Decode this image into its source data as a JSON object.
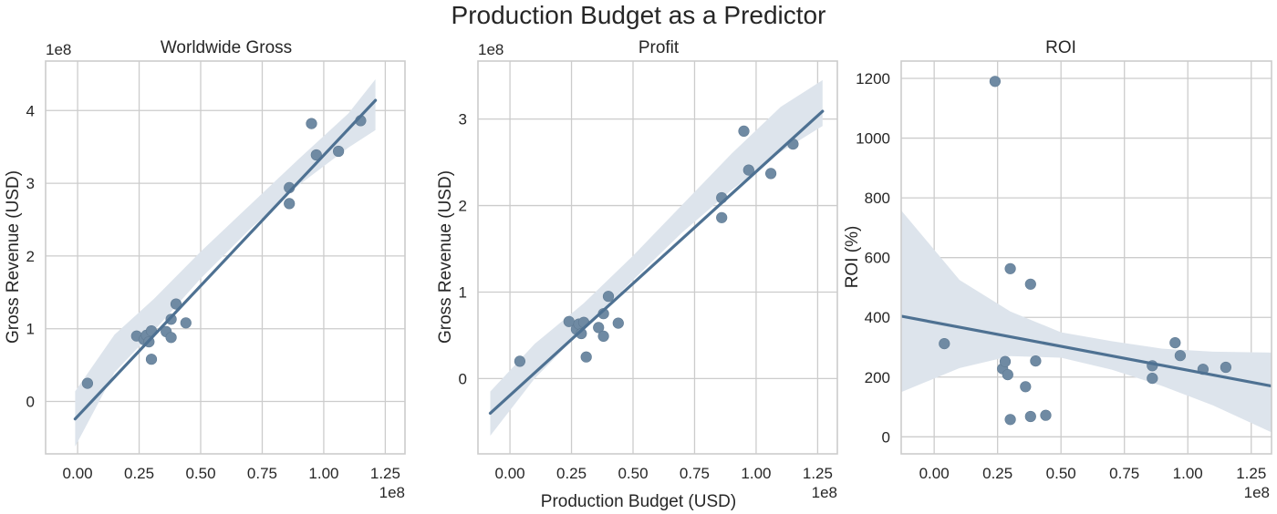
{
  "figure": {
    "title": "Production Budget as a Predictor"
  },
  "colors": {
    "points": "#6f8aa3",
    "line": "#4e7192",
    "band": "#dde4ec",
    "grid": "#cccccc"
  },
  "chart_data": [
    {
      "type": "scatter",
      "title": "Worldwide Gross",
      "xlabel": "",
      "ylabel": "Gross Revenue (USD)",
      "x_offset_label": "1e8",
      "y_offset_label": "1e8",
      "xlim": [
        -0.13,
        1.33
      ],
      "ylim": [
        -0.72,
        4.68
      ],
      "xticks": [
        0.0,
        0.25,
        0.5,
        0.75,
        1.0,
        1.25
      ],
      "xtick_labels": [
        "0.00",
        "0.25",
        "0.50",
        "0.75",
        "1.00",
        "1.25"
      ],
      "yticks": [
        0,
        1,
        2,
        3,
        4
      ],
      "ytick_labels": [
        "0",
        "1",
        "2",
        "3",
        "4"
      ],
      "grid": true,
      "points": [
        {
          "x": 0.04,
          "y": 0.25
        },
        {
          "x": 0.24,
          "y": 0.9
        },
        {
          "x": 0.27,
          "y": 0.85
        },
        {
          "x": 0.28,
          "y": 0.91
        },
        {
          "x": 0.29,
          "y": 0.82
        },
        {
          "x": 0.3,
          "y": 0.97
        },
        {
          "x": 0.3,
          "y": 0.58
        },
        {
          "x": 0.36,
          "y": 0.96
        },
        {
          "x": 0.38,
          "y": 0.88
        },
        {
          "x": 0.38,
          "y": 1.13
        },
        {
          "x": 0.4,
          "y": 1.34
        },
        {
          "x": 0.44,
          "y": 1.08
        },
        {
          "x": 0.86,
          "y": 2.94
        },
        {
          "x": 0.86,
          "y": 2.72
        },
        {
          "x": 0.95,
          "y": 3.82
        },
        {
          "x": 0.97,
          "y": 3.39
        },
        {
          "x": 1.06,
          "y": 3.44
        },
        {
          "x": 1.15,
          "y": 3.86
        }
      ],
      "regression": {
        "x0": -0.01,
        "y0": -0.24,
        "x1": 1.21,
        "y1": 4.14
      },
      "ci_band": {
        "x": [
          -0.01,
          0.15,
          0.31,
          0.5,
          0.7,
          0.9,
          1.1,
          1.21
        ],
        "lower": [
          -0.62,
          0.4,
          0.97,
          1.69,
          2.37,
          2.98,
          3.49,
          3.73
        ],
        "upper": [
          0.14,
          0.92,
          1.41,
          2.06,
          2.7,
          3.34,
          3.96,
          4.43
        ]
      }
    },
    {
      "type": "scatter",
      "title": "Profit",
      "xlabel": "Production Budget (USD)",
      "ylabel": "Gross Revenue (USD)",
      "x_offset_label": "1e8",
      "y_offset_label": "1e8",
      "xlim": [
        -0.13,
        1.33
      ],
      "ylim": [
        -0.87,
        3.67
      ],
      "xticks": [
        0.0,
        0.25,
        0.5,
        0.75,
        1.0,
        1.25
      ],
      "xtick_labels": [
        "0.00",
        "0.25",
        "0.50",
        "0.75",
        "1.00",
        "1.25"
      ],
      "yticks": [
        0,
        1,
        2,
        3
      ],
      "ytick_labels": [
        "0",
        "1",
        "2",
        "3"
      ],
      "grid": true,
      "points": [
        {
          "x": 0.04,
          "y": 0.2
        },
        {
          "x": 0.24,
          "y": 0.66
        },
        {
          "x": 0.27,
          "y": 0.57
        },
        {
          "x": 0.28,
          "y": 0.63
        },
        {
          "x": 0.29,
          "y": 0.52
        },
        {
          "x": 0.3,
          "y": 0.65
        },
        {
          "x": 0.31,
          "y": 0.25
        },
        {
          "x": 0.36,
          "y": 0.59
        },
        {
          "x": 0.38,
          "y": 0.49
        },
        {
          "x": 0.38,
          "y": 0.75
        },
        {
          "x": 0.4,
          "y": 0.95
        },
        {
          "x": 0.44,
          "y": 0.64
        },
        {
          "x": 0.86,
          "y": 2.09
        },
        {
          "x": 0.86,
          "y": 1.86
        },
        {
          "x": 0.95,
          "y": 2.86
        },
        {
          "x": 0.97,
          "y": 2.41
        },
        {
          "x": 1.06,
          "y": 2.37
        },
        {
          "x": 1.15,
          "y": 2.71
        }
      ],
      "regression": {
        "x0": -0.08,
        "y0": -0.4,
        "x1": 1.27,
        "y1": 3.09
      },
      "ci_band": {
        "x": [
          -0.08,
          0.1,
          0.3,
          0.5,
          0.7,
          0.9,
          1.1,
          1.27
        ],
        "lower": [
          -0.66,
          0.0,
          0.58,
          1.14,
          1.69,
          2.18,
          2.62,
          2.92
        ],
        "upper": [
          -0.15,
          0.4,
          0.87,
          1.42,
          2.01,
          2.6,
          3.14,
          3.45
        ]
      }
    },
    {
      "type": "scatter",
      "title": "ROI",
      "xlabel": "",
      "ylabel": "ROI (%)",
      "x_offset_label": "1e8",
      "y_offset_label": "",
      "xlim": [
        -0.13,
        1.33
      ],
      "ylim": [
        -57,
        1258
      ],
      "xticks": [
        0.0,
        0.25,
        0.5,
        0.75,
        1.0,
        1.25
      ],
      "xtick_labels": [
        "0.00",
        "0.25",
        "0.50",
        "0.75",
        "1.00",
        "1.25"
      ],
      "yticks": [
        0,
        200,
        400,
        600,
        800,
        1000,
        1200
      ],
      "ytick_labels": [
        "0",
        "200",
        "400",
        "600",
        "800",
        "1000",
        "1200"
      ],
      "grid": true,
      "points": [
        {
          "x": 0.04,
          "y": 312
        },
        {
          "x": 0.24,
          "y": 1190
        },
        {
          "x": 0.27,
          "y": 228
        },
        {
          "x": 0.28,
          "y": 252
        },
        {
          "x": 0.29,
          "y": 208
        },
        {
          "x": 0.3,
          "y": 563
        },
        {
          "x": 0.3,
          "y": 58
        },
        {
          "x": 0.36,
          "y": 168
        },
        {
          "x": 0.38,
          "y": 68
        },
        {
          "x": 0.38,
          "y": 511
        },
        {
          "x": 0.4,
          "y": 254
        },
        {
          "x": 0.44,
          "y": 72
        },
        {
          "x": 0.86,
          "y": 238
        },
        {
          "x": 0.86,
          "y": 196
        },
        {
          "x": 0.95,
          "y": 315
        },
        {
          "x": 0.97,
          "y": 272
        },
        {
          "x": 1.06,
          "y": 226
        },
        {
          "x": 1.15,
          "y": 233
        }
      ],
      "regression": {
        "x0": -0.13,
        "y0": 404,
        "x1": 1.33,
        "y1": 170
      },
      "ci_band": {
        "x": [
          -0.13,
          0.1,
          0.3,
          0.5,
          0.7,
          0.9,
          1.1,
          1.33
        ],
        "lower": [
          150,
          230,
          270,
          265,
          225,
          170,
          105,
          15
        ],
        "upper": [
          758,
          525,
          420,
          350,
          320,
          295,
          285,
          282
        ]
      }
    }
  ]
}
